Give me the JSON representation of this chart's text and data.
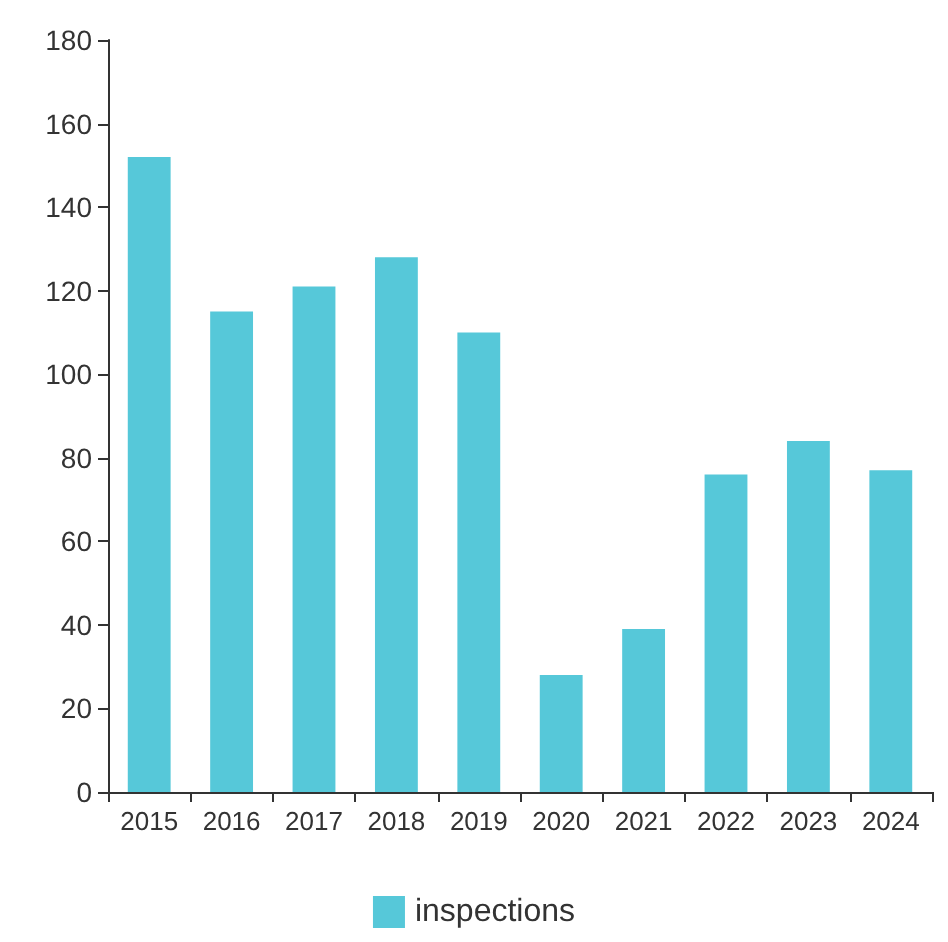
{
  "chart_data": {
    "type": "bar",
    "categories": [
      "2015",
      "2016",
      "2017",
      "2018",
      "2019",
      "2020",
      "2021",
      "2022",
      "2023",
      "2024"
    ],
    "series": [
      {
        "name": "inspections",
        "color": "#56c8d9",
        "values": [
          152,
          115,
          121,
          128,
          110,
          28,
          39,
          76,
          84,
          77
        ]
      }
    ],
    "ylim": [
      0,
      180
    ],
    "yticks": [
      0,
      20,
      40,
      60,
      80,
      100,
      120,
      140,
      160,
      180
    ],
    "grid": false,
    "legend": "bottom"
  }
}
